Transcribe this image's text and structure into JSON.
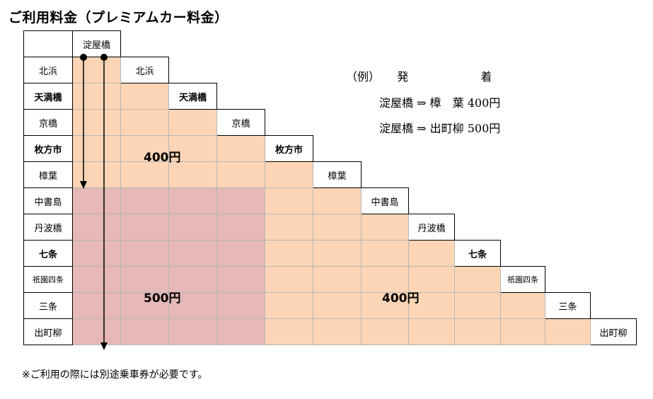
{
  "title": "ご利用料金（プレミアムカー料金）",
  "stations": [
    "淀屋橋",
    "北浜",
    "天満橋",
    "京橋",
    "枚方市",
    "樟葉",
    "中書島",
    "丹波橋",
    "七条",
    "祇園四条",
    "三条",
    "出町柳"
  ],
  "fares": {
    "zone_a": "400",
    "zone_b": "500",
    "zone_c": "400",
    "unit": "円"
  },
  "example": {
    "label": "（例）",
    "from_header": "発",
    "to_header": "着",
    "rows": [
      {
        "from": "淀屋橋",
        "arrow": "⇒",
        "to": "樟　葉",
        "price": "400",
        "unit": "円"
      },
      {
        "from": "淀屋橋",
        "arrow": "⇒",
        "to": "出町柳",
        "price": "500",
        "unit": "円"
      }
    ]
  },
  "note": "※ご利用の際には別途乗車券が必要です。",
  "colors": {
    "fare_400": "#fbd5b5",
    "fare_500": "#e6b8b7"
  }
}
